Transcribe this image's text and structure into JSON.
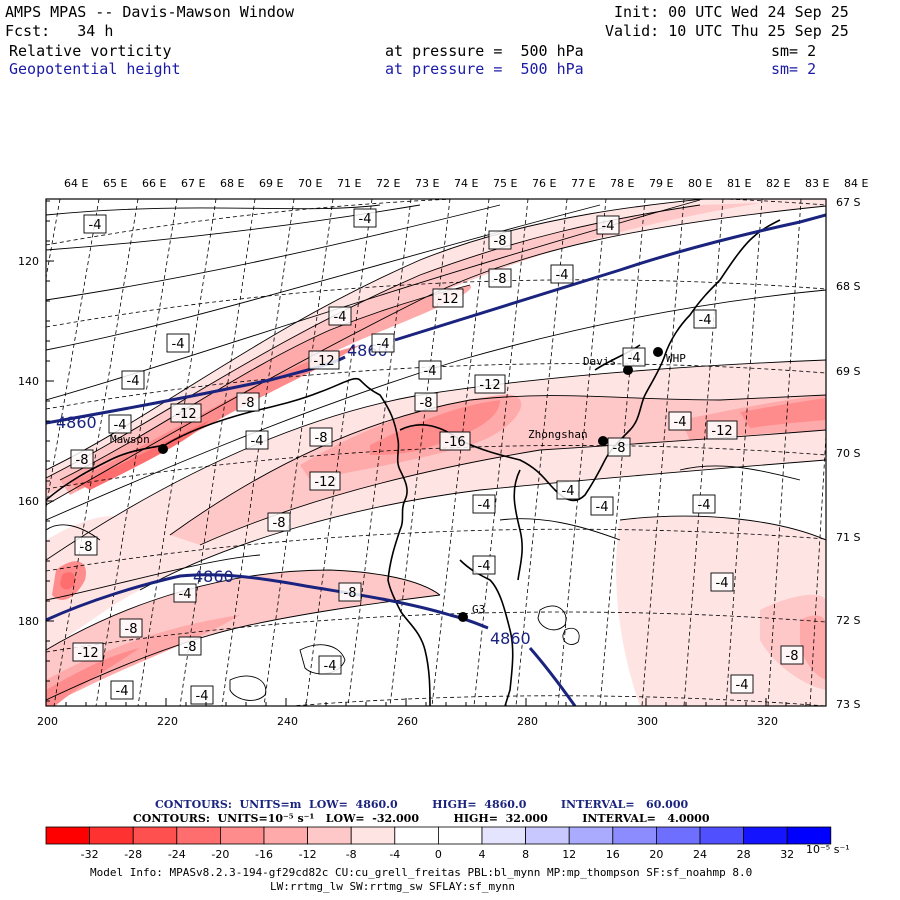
{
  "header": {
    "title": "AMPS MPAS -- Davis-Mawson Window",
    "init": "Init: 00 UTC Wed 24 Sep 25",
    "fcst": "Fcst:   34 h",
    "valid": "Valid: 10 UTC Thu 25 Sep 25",
    "field1_name": "Relative vorticity",
    "field1_level": "at pressure =  500 hPa",
    "field1_sm": "sm= 2",
    "field2_name": "Geopotential height",
    "field2_level": "at pressure =  500 hPa",
    "field2_sm": "sm= 2"
  },
  "map": {
    "lon_labels": [
      "64 E",
      "65 E",
      "66 E",
      "67 E",
      "68 E",
      "69 E",
      "70 E",
      "71 E",
      "72 E",
      "73 E",
      "74 E",
      "75 E",
      "76 E",
      "77 E",
      "78 E",
      "79 E",
      "80 E",
      "81 E",
      "82 E",
      "83 E",
      "84 E"
    ],
    "lat_labels": [
      "67 S",
      "68 S",
      "69 S",
      "70 S",
      "71 S",
      "72 S",
      "73 S"
    ],
    "x_ticks": [
      "200",
      "220",
      "240",
      "260",
      "280",
      "300",
      "320"
    ],
    "y_ticks": [
      "120",
      "140",
      "160",
      "180"
    ],
    "stations": [
      "Davis",
      "WHP",
      "Mawson",
      "Zhongshan",
      "G3"
    ],
    "height_labels": [
      "4860",
      "4860",
      "4860",
      "4860"
    ],
    "vort_labels": [
      "-4",
      "-4",
      "-4",
      "-4",
      "-4",
      "-4",
      "-4",
      "-4",
      "-4",
      "-4",
      "-4",
      "-4",
      "-4",
      "-4",
      "-4",
      "-4",
      "-4",
      "-4",
      "-4",
      "-4",
      "-4",
      "-4",
      "-4",
      "-4",
      "-4",
      "-8",
      "-8",
      "-8",
      "-8",
      "-8",
      "-8",
      "-8",
      "-8",
      "-8",
      "-8",
      "-8",
      "-8",
      "-8",
      "-12",
      "-12",
      "-12",
      "-12",
      "-12",
      "-12",
      "-12",
      "-16"
    ],
    "colors": {
      "height_contour": "#1a237e",
      "vort_contour": "#000000",
      "coast": "#000000"
    }
  },
  "footer": {
    "contours1": "CONTOURS:  UNITS=m  LOW=  4860.0         HIGH=  4860.0         INTERVAL=   60.000",
    "contours2": "CONTOURS:  UNITS=10⁻⁵ s⁻¹   LOW=  -32.000         HIGH=  32.000         INTERVAL=   4.0000",
    "model_info": "Model Info: MPASv8.2.3-194-gf29cd82c CU:cu_grell_freitas PBL:bl_mynn MP:mp_thompson SF:sf_noahmp 8.0",
    "model_info2": "LW:rrtmg_lw SW:rrtmg_sw SFLAY:sf_mynn",
    "colorbar_labels": [
      "-32",
      "-28",
      "-24",
      "-20",
      "-16",
      "-12",
      "-8",
      "-4",
      "0",
      "4",
      "8",
      "12",
      "16",
      "20",
      "24",
      "28",
      "32"
    ],
    "colorbar_units": "10⁻⁵ s⁻¹",
    "colorbar_colors": [
      "#ff0000",
      "#ff3232",
      "#ff5050",
      "#ff6e6e",
      "#ff8c8c",
      "#ffaaaa",
      "#ffc8c8",
      "#ffe4e4",
      "#ffffff",
      "#ffffff",
      "#e4e4ff",
      "#c8c8ff",
      "#aaaaff",
      "#8c8cff",
      "#6e6eff",
      "#5050ff",
      "#1414ff",
      "#0000ff"
    ]
  }
}
